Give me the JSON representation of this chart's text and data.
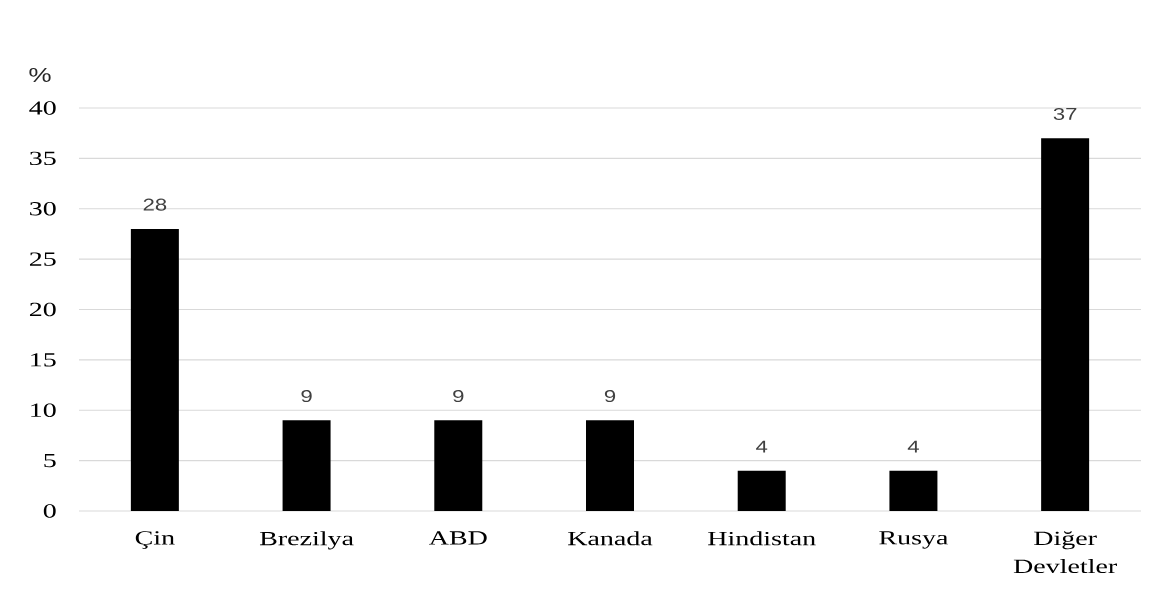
{
  "chart_data": {
    "type": "bar",
    "ylabel": "%",
    "categories": [
      "Çin",
      "Brezilya",
      "ABD",
      "Kanada",
      "Hindistan",
      "Rusya",
      "Diğer Devletler"
    ],
    "values": [
      28,
      9,
      9,
      9,
      4,
      4,
      37
    ],
    "color": "#000000",
    "ylim": [
      0,
      40
    ],
    "yticks": [
      0,
      5,
      10,
      15,
      20,
      25,
      30,
      35,
      40
    ],
    "grid": "y",
    "data_labels": true
  }
}
